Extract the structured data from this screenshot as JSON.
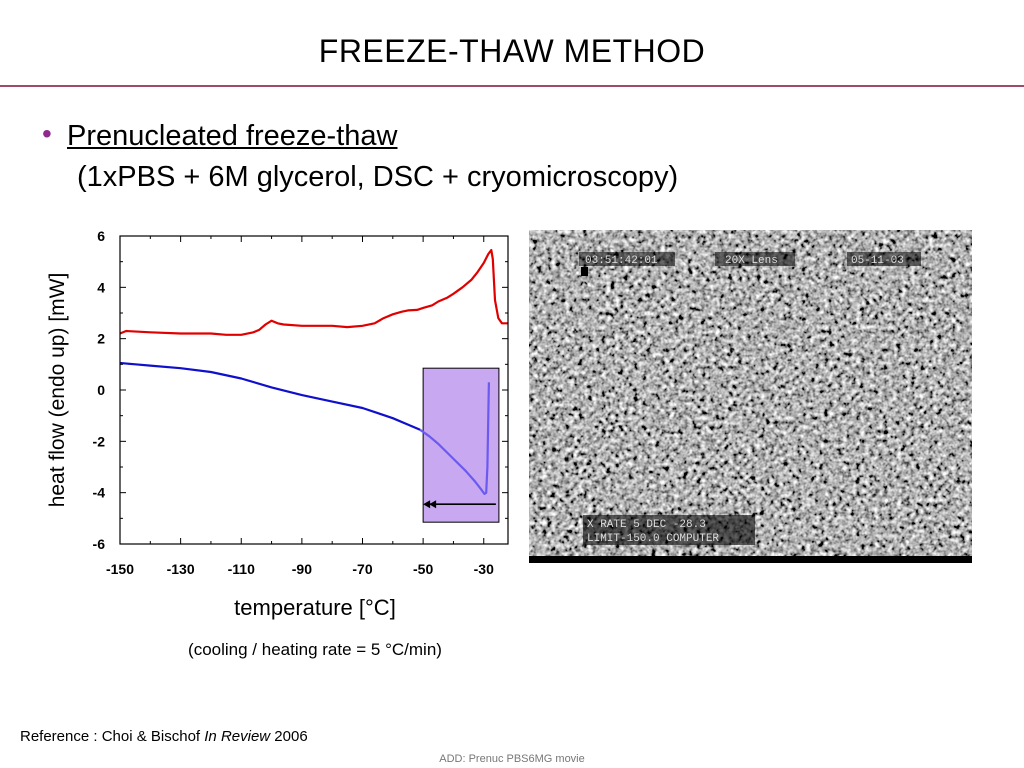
{
  "slide": {
    "title": "FREEZE-THAW METHOD",
    "bullet_heading": "Prenucleated freeze-thaw",
    "bullet_sub": "(1xPBS + 6M glycerol, DSC + cryomicroscopy)",
    "rate_note": "(cooling / heating rate = 5 °C/min)",
    "reference_prefix": "Reference : Choi & Bischof ",
    "reference_journal": "In Review",
    "reference_year": " 2006",
    "footnote": "ADD: Prenuc PBS6MG movie"
  },
  "colors": {
    "accent_rule": "#9e4a6b",
    "bullet": "#8e2a8e",
    "heating_curve": "#e00000",
    "cooling_curve": "#1010cc",
    "highlight_fill": "#c8a8f0",
    "highlight_curve": "#6a5af0"
  },
  "micrograph": {
    "overlay_top": [
      "03:51:42:01",
      "20X Lens",
      "05-11-03"
    ],
    "overlay_bottom": [
      "X RATE    5 DEC -28.3",
      "LIMIT-150.0 COMPUTER"
    ],
    "icon": "micrograph-noise-texture"
  },
  "chart_data": {
    "type": "line",
    "title": "",
    "xlabel": "temperature [°C]",
    "ylabel": "heat flow (endo up) [mW]",
    "xlim": [
      -150,
      -22
    ],
    "ylim": [
      -6,
      6
    ],
    "x_ticks": [
      -150,
      -130,
      -110,
      -90,
      -70,
      -50,
      -30
    ],
    "y_ticks": [
      6,
      4,
      2,
      0,
      -2,
      -4,
      -6
    ],
    "grid": false,
    "series": [
      {
        "color": "#e00000",
        "x": [
          -150,
          -148,
          -140,
          -130,
          -120,
          -115,
          -110,
          -106,
          -104,
          -102,
          -100,
          -98,
          -96,
          -90,
          -80,
          -75,
          -70,
          -66,
          -63,
          -60,
          -57,
          -55,
          -52,
          -50,
          -47,
          -45,
          -42,
          -40,
          -37,
          -34,
          -32,
          -30,
          -28.5,
          -27.5,
          -27,
          -26.3,
          -25.2,
          -24,
          -22
        ],
        "y": [
          2.2,
          2.3,
          2.25,
          2.2,
          2.2,
          2.15,
          2.15,
          2.25,
          2.35,
          2.55,
          2.7,
          2.6,
          2.55,
          2.5,
          2.5,
          2.45,
          2.5,
          2.6,
          2.8,
          2.95,
          3.05,
          3.1,
          3.12,
          3.2,
          3.3,
          3.45,
          3.6,
          3.75,
          4.0,
          4.3,
          4.6,
          4.95,
          5.3,
          5.45,
          5.1,
          3.5,
          2.8,
          2.6,
          2.6
        ]
      },
      {
        "color": "#1010cc",
        "x": [
          -150,
          -145,
          -140,
          -130,
          -120,
          -110,
          -100,
          -90,
          -80,
          -70,
          -65,
          -60,
          -55,
          -51
        ],
        "y": [
          1.05,
          1.0,
          0.95,
          0.85,
          0.7,
          0.45,
          0.1,
          -0.2,
          -0.45,
          -0.7,
          -0.9,
          -1.1,
          -1.35,
          -1.55
        ]
      },
      {
        "color": "#6a5af0",
        "x": [
          -51,
          -48,
          -45,
          -42,
          -39,
          -36,
          -33,
          -31,
          -29.8,
          -29.2,
          -28.8,
          -28.5,
          -28.3
        ],
        "y": [
          -1.55,
          -1.8,
          -2.1,
          -2.45,
          -2.8,
          -3.15,
          -3.55,
          -3.85,
          -4.05,
          -4.0,
          -3.0,
          -1.0,
          0.3
        ]
      }
    ],
    "highlight_box": {
      "x": [
        -50,
        -25
      ],
      "y": [
        -5.15,
        0.85
      ]
    },
    "arrow": {
      "from_x": -26,
      "to_x": -50,
      "y": -4.45,
      "style": "double-head"
    }
  }
}
